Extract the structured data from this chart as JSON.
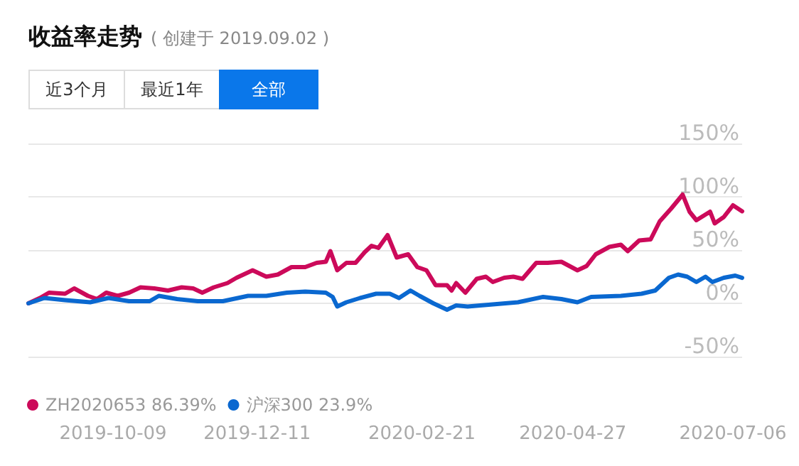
{
  "chart_data": {
    "type": "line",
    "title": "收益率走势",
    "subtitle": "( 创建于 2019.09.02 )",
    "annotations": [
      "近3个月",
      "最近1年",
      "全部"
    ],
    "xlim": [
      "2019-09-02",
      "2020-07-10"
    ],
    "xticks": [
      "2019-10-09",
      "2019-12-11",
      "2020-02-21",
      "2020-04-27",
      "2020-07-06"
    ],
    "ylim": [
      -50,
      150
    ],
    "yticks": [
      {
        "value": -50,
        "label": "-50%"
      },
      {
        "value": 0,
        "label": "0%"
      },
      {
        "value": 50,
        "label": "50%"
      },
      {
        "value": 100,
        "label": "100%"
      },
      {
        "value": 150,
        "label": "150%"
      }
    ],
    "grid": "y",
    "legend": "bottom",
    "marker": "none",
    "line_style": "solid",
    "series": [
      {
        "name": "ZH2020653 86.39%",
        "color": "#cc0a5a",
        "x": [
          "2019-09-02",
          "2019-09-07",
          "2019-09-11",
          "2019-09-18",
          "2019-09-22",
          "2019-09-28",
          "2019-10-02",
          "2019-10-06",
          "2019-10-11",
          "2019-10-16",
          "2019-10-21",
          "2019-10-27",
          "2019-11-02",
          "2019-11-08",
          "2019-11-13",
          "2019-11-17",
          "2019-11-22",
          "2019-11-28",
          "2019-12-02",
          "2019-12-09",
          "2019-12-15",
          "2019-12-20",
          "2019-12-26",
          "2020-01-01",
          "2020-01-06",
          "2020-01-10",
          "2020-01-12",
          "2020-01-15",
          "2020-01-19",
          "2020-01-23",
          "2020-01-27",
          "2020-01-30",
          "2020-02-02",
          "2020-02-06",
          "2020-02-10",
          "2020-02-15",
          "2020-02-19",
          "2020-02-23",
          "2020-02-27",
          "2020-03-03",
          "2020-03-05",
          "2020-03-07",
          "2020-03-11",
          "2020-03-16",
          "2020-03-20",
          "2020-03-23",
          "2020-03-28",
          "2020-04-01",
          "2020-04-05",
          "2020-04-11",
          "2020-04-16",
          "2020-04-22",
          "2020-04-29",
          "2020-05-03",
          "2020-05-07",
          "2020-05-13",
          "2020-05-18",
          "2020-05-21",
          "2020-05-26",
          "2020-05-31",
          "2020-06-04",
          "2020-06-09",
          "2020-06-14",
          "2020-06-17",
          "2020-06-20",
          "2020-06-26",
          "2020-06-28",
          "2020-07-02",
          "2020-07-06",
          "2020-07-10"
        ],
        "values": [
          0,
          5,
          10,
          9,
          14,
          7,
          4,
          10,
          7,
          10,
          15,
          14,
          12,
          15,
          14,
          10,
          15,
          19,
          24,
          31,
          25,
          27,
          34,
          34,
          38,
          39,
          49,
          31,
          38,
          38,
          48,
          54,
          52,
          64,
          43,
          46,
          34,
          31,
          17,
          17,
          12,
          19,
          10,
          23,
          25,
          20,
          24,
          25,
          23,
          38,
          38,
          39,
          31,
          35,
          46,
          53,
          55,
          49,
          59,
          60,
          77,
          89,
          102,
          86,
          78,
          86,
          75,
          81,
          92,
          86.39
        ]
      },
      {
        "name": "沪深300 23.9%",
        "color": "#0a68d0",
        "x": [
          "2019-09-02",
          "2019-09-09",
          "2019-09-18",
          "2019-09-29",
          "2019-10-07",
          "2019-10-16",
          "2019-10-25",
          "2019-10-29",
          "2019-11-06",
          "2019-11-15",
          "2019-11-26",
          "2019-12-07",
          "2019-12-15",
          "2019-12-24",
          "2020-01-01",
          "2020-01-10",
          "2020-01-13",
          "2020-01-15",
          "2020-01-19",
          "2020-01-25",
          "2020-02-01",
          "2020-02-07",
          "2020-02-11",
          "2020-02-16",
          "2020-02-20",
          "2020-02-26",
          "2020-03-03",
          "2020-03-07",
          "2020-03-12",
          "2020-03-23",
          "2020-04-03",
          "2020-04-14",
          "2020-04-22",
          "2020-04-29",
          "2020-05-05",
          "2020-05-18",
          "2020-05-27",
          "2020-06-02",
          "2020-06-08",
          "2020-06-12",
          "2020-06-16",
          "2020-06-20",
          "2020-06-24",
          "2020-06-27",
          "2020-07-02",
          "2020-07-07",
          "2020-07-10"
        ],
        "values": [
          0,
          5,
          3,
          1,
          5,
          2,
          2,
          7,
          4,
          2,
          2,
          7,
          7,
          10,
          11,
          10,
          6,
          -3,
          1,
          5,
          9,
          9,
          5,
          12,
          7,
          0,
          -6,
          -2,
          -3,
          -1,
          1,
          6,
          4,
          1,
          6,
          7,
          9,
          12,
          24,
          27,
          25,
          20,
          25,
          20,
          24,
          26,
          23.9
        ]
      }
    ]
  }
}
